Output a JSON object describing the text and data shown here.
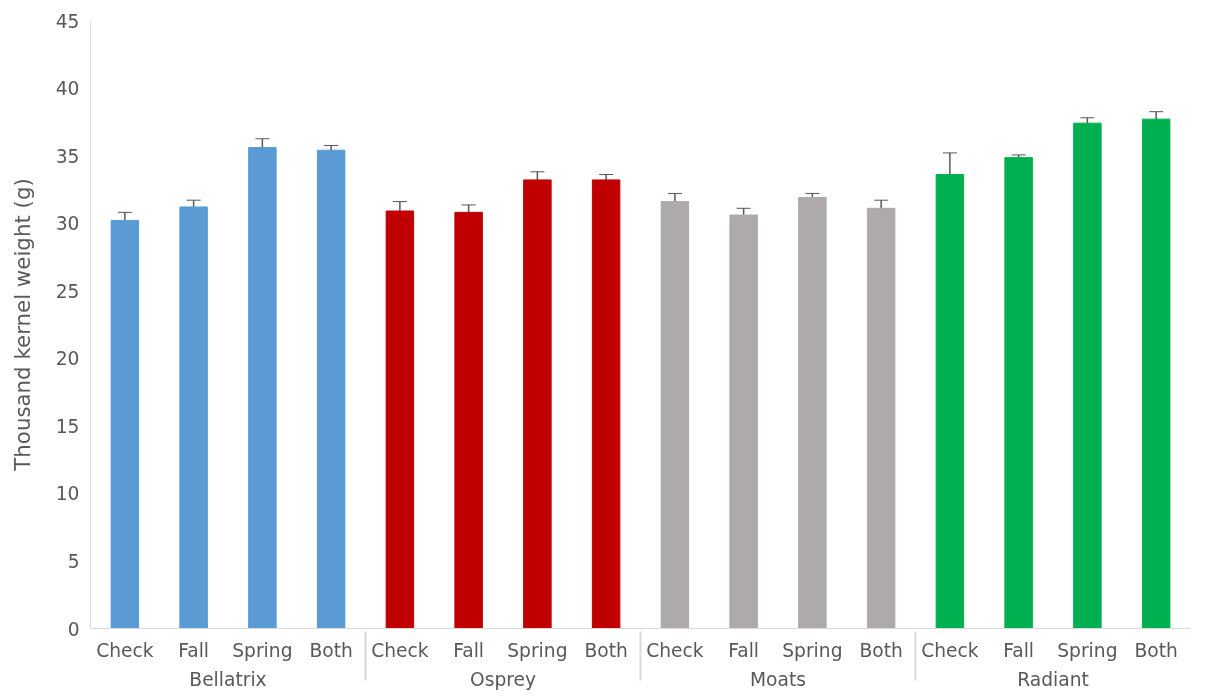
{
  "chart_data": {
    "type": "bar",
    "ylabel": "Thousand kernel weight (g)",
    "categories": [
      "Check",
      "Fall",
      "Spring",
      "Both",
      "Check",
      "Fall",
      "Spring",
      "Both",
      "Check",
      "Fall",
      "Spring",
      "Both",
      "Check",
      "Fall",
      "Spring",
      "Both"
    ],
    "series": [
      {
        "name": "Bellatrix",
        "color": "#5b9bd5",
        "values": [
          30.2,
          31.2,
          35.6,
          35.4,
          null,
          null,
          null,
          null,
          null,
          null,
          null,
          null,
          null,
          null,
          null,
          null
        ],
        "errors": [
          0.6,
          0.5,
          0.65,
          0.35,
          null,
          null,
          null,
          null,
          null,
          null,
          null,
          null,
          null,
          null,
          null,
          null
        ]
      },
      {
        "name": "Osprey",
        "color": "#c00000",
        "values": [
          null,
          null,
          null,
          null,
          30.9,
          30.8,
          33.2,
          33.2,
          null,
          null,
          null,
          null,
          null,
          null,
          null,
          null
        ],
        "errors": [
          null,
          null,
          null,
          null,
          0.7,
          0.55,
          0.6,
          0.4,
          null,
          null,
          null,
          null,
          null,
          null,
          null,
          null
        ]
      },
      {
        "name": "Moats",
        "color": "#aeaaaa",
        "values": [
          null,
          null,
          null,
          null,
          null,
          null,
          null,
          null,
          31.6,
          30.6,
          31.9,
          31.1,
          null,
          null,
          null,
          null
        ],
        "errors": [
          null,
          null,
          null,
          null,
          null,
          null,
          null,
          null,
          0.6,
          0.5,
          0.3,
          0.6,
          null,
          null,
          null,
          null
        ]
      },
      {
        "name": "Radiant",
        "color": "#00b050",
        "values": [
          null,
          null,
          null,
          null,
          null,
          null,
          null,
          null,
          null,
          null,
          null,
          null,
          33.6,
          34.85,
          37.4,
          37.7
        ],
        "errors": [
          null,
          null,
          null,
          null,
          null,
          null,
          null,
          null,
          null,
          null,
          null,
          null,
          1.6,
          0.2,
          0.4,
          0.55
        ]
      }
    ],
    "ylim": [
      0,
      45
    ],
    "yticks": [
      0,
      5,
      10,
      15,
      20,
      25,
      30,
      35,
      40,
      45
    ]
  }
}
